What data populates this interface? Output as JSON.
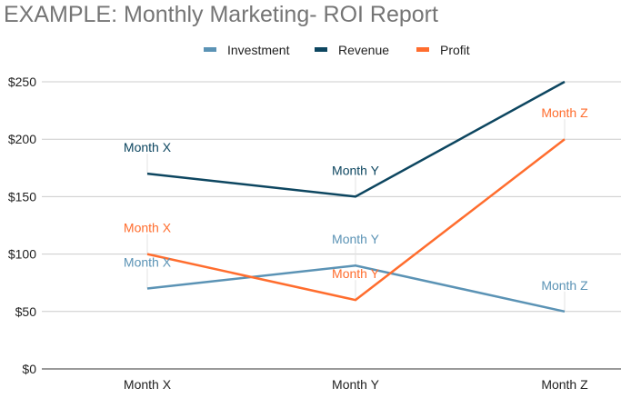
{
  "chart_data": {
    "type": "line",
    "title": "EXAMPLE: Monthly Marketing- ROI Report",
    "xlabel": "",
    "ylabel": "",
    "categories": [
      "Month X",
      "Month Y",
      "Month Z"
    ],
    "ylim": [
      0,
      250
    ],
    "yticks": [
      0,
      50,
      100,
      150,
      200,
      250
    ],
    "ytick_labels": [
      "$0",
      "$50",
      "$100",
      "$150",
      "$200",
      "$250"
    ],
    "grid": true,
    "legend_position": "top",
    "series": [
      {
        "name": "Investment",
        "color": "#5b93b5",
        "values": [
          70,
          90,
          50
        ],
        "data_labels": [
          "Month X",
          "Month Y",
          "Month Z"
        ]
      },
      {
        "name": "Revenue",
        "color": "#0d4660",
        "values": [
          170,
          150,
          250
        ],
        "data_labels": [
          "Month X",
          "Month Y",
          ""
        ]
      },
      {
        "name": "Profit",
        "color": "#ff6d2e",
        "values": [
          100,
          60,
          200
        ],
        "data_labels": [
          "Month X",
          "Month Y",
          "Month Z"
        ]
      }
    ]
  }
}
